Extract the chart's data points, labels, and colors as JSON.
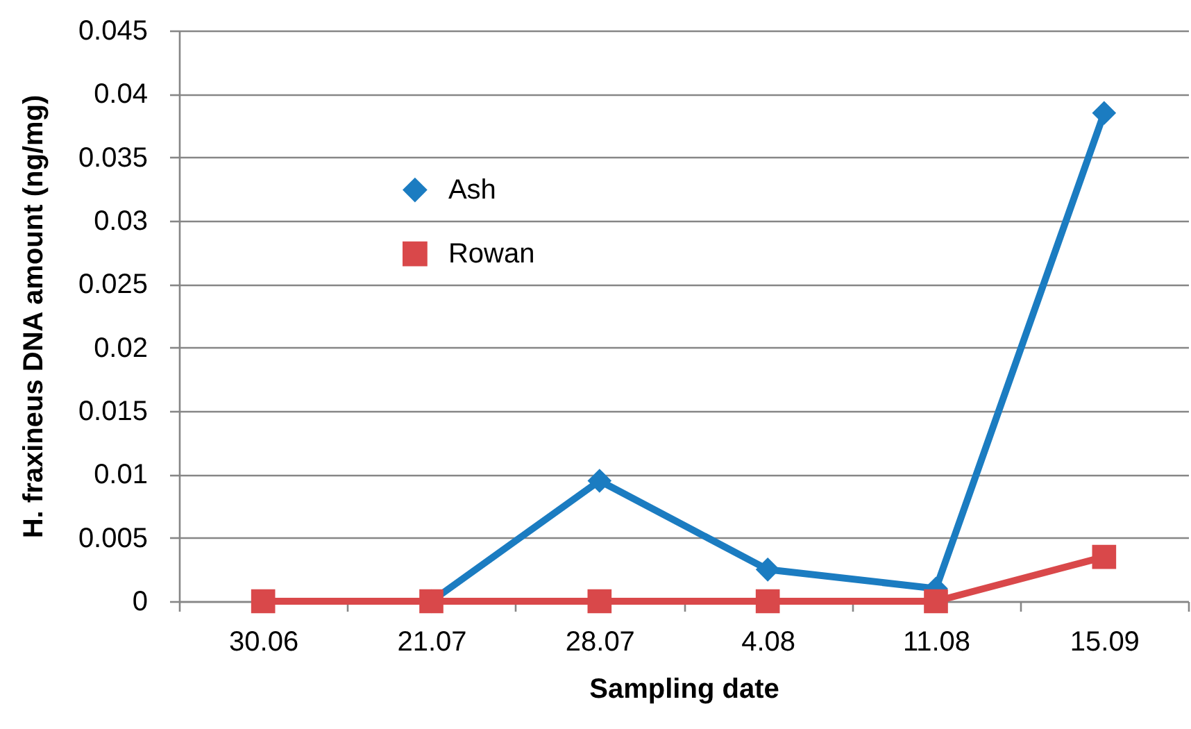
{
  "chart_data": {
    "type": "line",
    "xlabel": "Sampling date",
    "ylabel": "H. fraxineus DNA amount (ng/mg)",
    "categories": [
      "30.06",
      "21.07",
      "28.07",
      "4.08",
      "11.08",
      "15.09"
    ],
    "series": [
      {
        "name": "Ash",
        "color": "#1b7cc1",
        "marker": "diamond",
        "values": [
          null,
          0,
          0.0095,
          0.0025,
          0.001,
          0.0385
        ]
      },
      {
        "name": "Rowan",
        "color": "#d9484a",
        "marker": "square",
        "values": [
          0,
          0,
          0,
          0,
          0,
          0.0035
        ]
      }
    ],
    "ylim": [
      0,
      0.045
    ],
    "yticks": [
      0,
      0.005,
      0.01,
      0.015,
      0.02,
      0.025,
      0.03,
      0.035,
      0.04,
      0.045
    ],
    "grid": "y",
    "legend": "top left",
    "line_style": "solid"
  }
}
